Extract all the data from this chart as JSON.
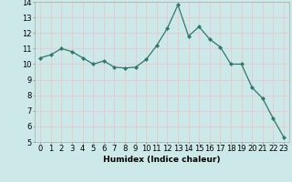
{
  "x": [
    0,
    1,
    2,
    3,
    4,
    5,
    6,
    7,
    8,
    9,
    10,
    11,
    12,
    13,
    14,
    15,
    16,
    17,
    18,
    19,
    20,
    21,
    22,
    23
  ],
  "y": [
    10.4,
    10.6,
    11.0,
    10.8,
    10.4,
    10.0,
    10.2,
    9.8,
    9.75,
    9.8,
    10.3,
    11.2,
    12.3,
    13.8,
    11.8,
    12.4,
    11.6,
    11.1,
    10.0,
    10.0,
    8.5,
    7.8,
    6.5,
    5.3
  ],
  "xlabel": "Humidex (Indice chaleur)",
  "ylim": [
    5,
    14
  ],
  "xlim_min": -0.5,
  "xlim_max": 23.5,
  "yticks": [
    5,
    6,
    7,
    8,
    9,
    10,
    11,
    12,
    13,
    14
  ],
  "xticks": [
    0,
    1,
    2,
    3,
    4,
    5,
    6,
    7,
    8,
    9,
    10,
    11,
    12,
    13,
    14,
    15,
    16,
    17,
    18,
    19,
    20,
    21,
    22,
    23
  ],
  "line_color": "#2d7a6a",
  "marker_color": "#2d7a6a",
  "bg_color": "#cce8e8",
  "grid_color": "#e8c8c8",
  "title_color": "#000000",
  "label_fontsize": 6.5,
  "tick_fontsize": 6
}
